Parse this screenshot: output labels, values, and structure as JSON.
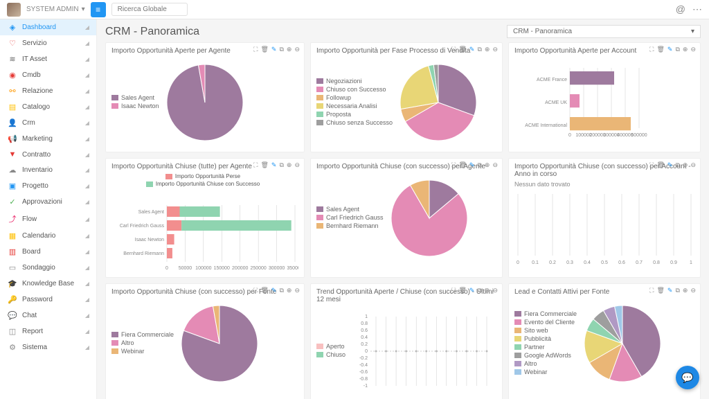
{
  "topbar": {
    "user": "SYSTEM ADMIN",
    "search_placeholder": "Ricerca Globale"
  },
  "sidebar": {
    "items": [
      {
        "icon": "◈",
        "label": "Dashboard",
        "color": "#2196f3",
        "active": true
      },
      {
        "icon": "♡",
        "label": "Servizio",
        "color": "#e53935"
      },
      {
        "icon": "≋",
        "label": "IT Asset",
        "color": "#666"
      },
      {
        "icon": "◉",
        "label": "Cmdb",
        "color": "#e53935"
      },
      {
        "icon": "⚯",
        "label": "Relazione",
        "color": "#ff9800"
      },
      {
        "icon": "▤",
        "label": "Catalogo",
        "color": "#ffc107"
      },
      {
        "icon": "👤",
        "label": "Crm",
        "color": "#2196f3"
      },
      {
        "icon": "📢",
        "label": "Marketing",
        "color": "#03a9f4"
      },
      {
        "icon": "▼",
        "label": "Contratto",
        "color": "#e53935"
      },
      {
        "icon": "☁",
        "label": "Inventario",
        "color": "#888"
      },
      {
        "icon": "▣",
        "label": "Progetto",
        "color": "#2196f3"
      },
      {
        "icon": "✓",
        "label": "Approvazioni",
        "color": "#4caf50"
      },
      {
        "icon": "⤴",
        "label": "Flow",
        "color": "#e91e63"
      },
      {
        "icon": "▦",
        "label": "Calendario",
        "color": "#ffc107"
      },
      {
        "icon": "▥",
        "label": "Board",
        "color": "#e53935"
      },
      {
        "icon": "▭",
        "label": "Sondaggio",
        "color": "#888"
      },
      {
        "icon": "🎓",
        "label": "Knowledge Base",
        "color": "#2196f3"
      },
      {
        "icon": "🔑",
        "label": "Password",
        "color": "#2196f3"
      },
      {
        "icon": "💬",
        "label": "Chat",
        "color": "#888"
      },
      {
        "icon": "◫",
        "label": "Report",
        "color": "#888"
      },
      {
        "icon": "⚙",
        "label": "Sistema",
        "color": "#888"
      }
    ]
  },
  "page": {
    "title": "CRM - Panoramica",
    "view_selector": "CRM - Panoramica"
  },
  "palette": {
    "purple": "#9e7a9e",
    "pink": "#e48bb5",
    "yellow": "#e8d676",
    "orange": "#eab676",
    "green": "#8fd4b0",
    "grey": "#9e9e9e"
  },
  "cards": [
    {
      "title": "Importo Opportunità Aperte per Agente",
      "type": "pie",
      "legend": [
        {
          "label": "Sales Agent",
          "color": "#9e7a9e"
        },
        {
          "label": "Isaac Newton",
          "color": "#e48bb5"
        }
      ],
      "slices": [
        {
          "start": -90,
          "end": 260,
          "color": "#9e7a9e"
        },
        {
          "start": 260,
          "end": 270,
          "color": "#e48bb5"
        }
      ]
    },
    {
      "title": "Importo Opportunità per Fase Processo di Vendita",
      "type": "pie",
      "legend": [
        {
          "label": "Negoziazioni",
          "color": "#9e7a9e"
        },
        {
          "label": "Chiuso con Successo",
          "color": "#e48bb5"
        },
        {
          "label": "Followup",
          "color": "#eab676"
        },
        {
          "label": "Necessaria Analisi",
          "color": "#e8d676"
        },
        {
          "label": "Proposta",
          "color": "#8fd4b0"
        },
        {
          "label": "Chiuso senza Successo",
          "color": "#9e9e9e"
        }
      ],
      "slices": [
        {
          "start": -90,
          "end": 20,
          "color": "#9e7a9e"
        },
        {
          "start": 20,
          "end": 150,
          "color": "#e48bb5"
        },
        {
          "start": 150,
          "end": 170,
          "color": "#eab676"
        },
        {
          "start": 170,
          "end": 255,
          "color": "#e8d676"
        },
        {
          "start": 255,
          "end": 263,
          "color": "#8fd4b0"
        },
        {
          "start": 263,
          "end": 270,
          "color": "#9e9e9e"
        }
      ]
    },
    {
      "title": "Importo Opportunità Aperte per Account",
      "type": "hbar",
      "categories": [
        "ACME France",
        "ACME UK",
        "ACME International"
      ],
      "values": [
        320000,
        70000,
        440000
      ],
      "colors": [
        "#9e7a9e",
        "#e48bb5",
        "#eab676"
      ],
      "xmax": 500000,
      "xticks": [
        0,
        100000,
        200000,
        300000,
        400000,
        500000
      ]
    },
    {
      "title": "Importo Opportunità Chiuse (tutte) per Agente",
      "type": "hbar-stacked",
      "legend": [
        {
          "label": "Importo Opportunità Perse",
          "color": "#f28e8e"
        },
        {
          "label": "Importo Opportunità Chiuse con Successo",
          "color": "#8fd4b0"
        }
      ],
      "categories": [
        "Sales Agent",
        "Carl Friedrich Gauss",
        "Isaac Newton",
        "Bernhard Riemann"
      ],
      "series": [
        {
          "color": "#f28e8e",
          "values": [
            35000,
            40000,
            20000,
            15000
          ]
        },
        {
          "color": "#8fd4b0",
          "values": [
            110000,
            300000,
            0,
            0
          ]
        }
      ],
      "xmax": 350000,
      "xticks": [
        0,
        50000,
        100000,
        150000,
        200000,
        250000,
        300000,
        350000
      ]
    },
    {
      "title": "Importo Opportunità Chiuse (con successo) per Agente",
      "type": "pie",
      "legend": [
        {
          "label": "Sales Agent",
          "color": "#9e7a9e"
        },
        {
          "label": "Carl Friedrich Gauss",
          "color": "#e48bb5"
        },
        {
          "label": "Bernhard Riemann",
          "color": "#eab676"
        }
      ],
      "slices": [
        {
          "start": -90,
          "end": -40,
          "color": "#9e7a9e"
        },
        {
          "start": -40,
          "end": 240,
          "color": "#e48bb5"
        },
        {
          "start": 240,
          "end": 270,
          "color": "#eab676"
        }
      ]
    },
    {
      "title": "Importo Opportunità Chiuse (con successo) per Account - Anno in corso",
      "type": "empty",
      "message": "Nessun dato trovato",
      "xticks": [
        0,
        0.1,
        0.2,
        0.3,
        0.4,
        0.5,
        0.6,
        0.7,
        0.8,
        0.9,
        1.0
      ]
    },
    {
      "title": "Importo Opportunità Chiuse (con successo) per Fonte",
      "type": "pie",
      "legend": [
        {
          "label": "Fiera Commerciale",
          "color": "#9e7a9e"
        },
        {
          "label": "Altro",
          "color": "#e48bb5"
        },
        {
          "label": "Webinar",
          "color": "#eab676"
        }
      ],
      "slices": [
        {
          "start": -90,
          "end": 200,
          "color": "#9e7a9e"
        },
        {
          "start": 200,
          "end": 260,
          "color": "#e48bb5"
        },
        {
          "start": 260,
          "end": 270,
          "color": "#eab676"
        }
      ]
    },
    {
      "title": "Trend Opportunità Aperte / Chiuse (con successo) - Ultimi 12 mesi",
      "type": "line-empty",
      "legend": [
        {
          "label": "Aperto",
          "color": "#f8c0c0"
        },
        {
          "label": "Chiuso",
          "color": "#8fd4b0"
        }
      ],
      "yticks": [
        1.0,
        0.8,
        0.6,
        0.4,
        0.2,
        0.0,
        -0.2,
        -0.4,
        -0.6,
        -0.8,
        -1.0
      ]
    },
    {
      "title": "Lead e Contatti Attivi per Fonte",
      "type": "pie",
      "legend": [
        {
          "label": "Fiera Commerciale",
          "color": "#9e7a9e"
        },
        {
          "label": "Evento del Cliente",
          "color": "#e48bb5"
        },
        {
          "label": "Sito web",
          "color": "#eab676"
        },
        {
          "label": "Pubblicità",
          "color": "#e8d676"
        },
        {
          "label": "Partner",
          "color": "#8fd4b0"
        },
        {
          "label": "Google AdWords",
          "color": "#9e9e9e"
        },
        {
          "label": "Altro",
          "color": "#b099c4"
        },
        {
          "label": "Webinar",
          "color": "#a0c8e8"
        }
      ],
      "slices": [
        {
          "start": -90,
          "end": 60,
          "color": "#9e7a9e"
        },
        {
          "start": 60,
          "end": 110,
          "color": "#e48bb5"
        },
        {
          "start": 110,
          "end": 150,
          "color": "#eab676"
        },
        {
          "start": 150,
          "end": 200,
          "color": "#e8d676"
        },
        {
          "start": 200,
          "end": 220,
          "color": "#8fd4b0"
        },
        {
          "start": 220,
          "end": 240,
          "color": "#9e9e9e"
        },
        {
          "start": 240,
          "end": 258,
          "color": "#b099c4"
        },
        {
          "start": 258,
          "end": 270,
          "color": "#a0c8e8"
        }
      ]
    }
  ]
}
